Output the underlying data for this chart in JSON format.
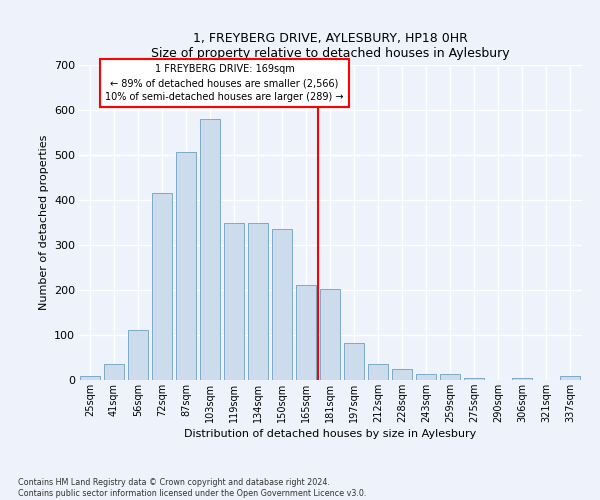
{
  "title": "1, FREYBERG DRIVE, AYLESBURY, HP18 0HR",
  "subtitle": "Size of property relative to detached houses in Aylesbury",
  "xlabel": "Distribution of detached houses by size in Aylesbury",
  "ylabel": "Number of detached properties",
  "categories": [
    "25sqm",
    "41sqm",
    "56sqm",
    "72sqm",
    "87sqm",
    "103sqm",
    "119sqm",
    "134sqm",
    "150sqm",
    "165sqm",
    "181sqm",
    "197sqm",
    "212sqm",
    "228sqm",
    "243sqm",
    "259sqm",
    "275sqm",
    "290sqm",
    "306sqm",
    "321sqm",
    "337sqm"
  ],
  "values": [
    10,
    35,
    112,
    415,
    507,
    580,
    348,
    348,
    335,
    212,
    203,
    82,
    35,
    25,
    14,
    14,
    5,
    0,
    5,
    0,
    8
  ],
  "bar_color": "#ccdcec",
  "bar_edgecolor": "#7aaac8",
  "vline_x": 9.5,
  "annotation_title": "1 FREYBERG DRIVE: 169sqm",
  "annotation_line1": "← 89% of detached houses are smaller (2,566)",
  "annotation_line2": "10% of semi-detached houses are larger (289) →",
  "background_color": "#eef2fa",
  "grid_color": "#ffffff",
  "footer_line1": "Contains HM Land Registry data © Crown copyright and database right 2024.",
  "footer_line2": "Contains public sector information licensed under the Open Government Licence v3.0.",
  "ylim": [
    0,
    700
  ],
  "yticks": [
    0,
    100,
    200,
    300,
    400,
    500,
    600,
    700
  ]
}
